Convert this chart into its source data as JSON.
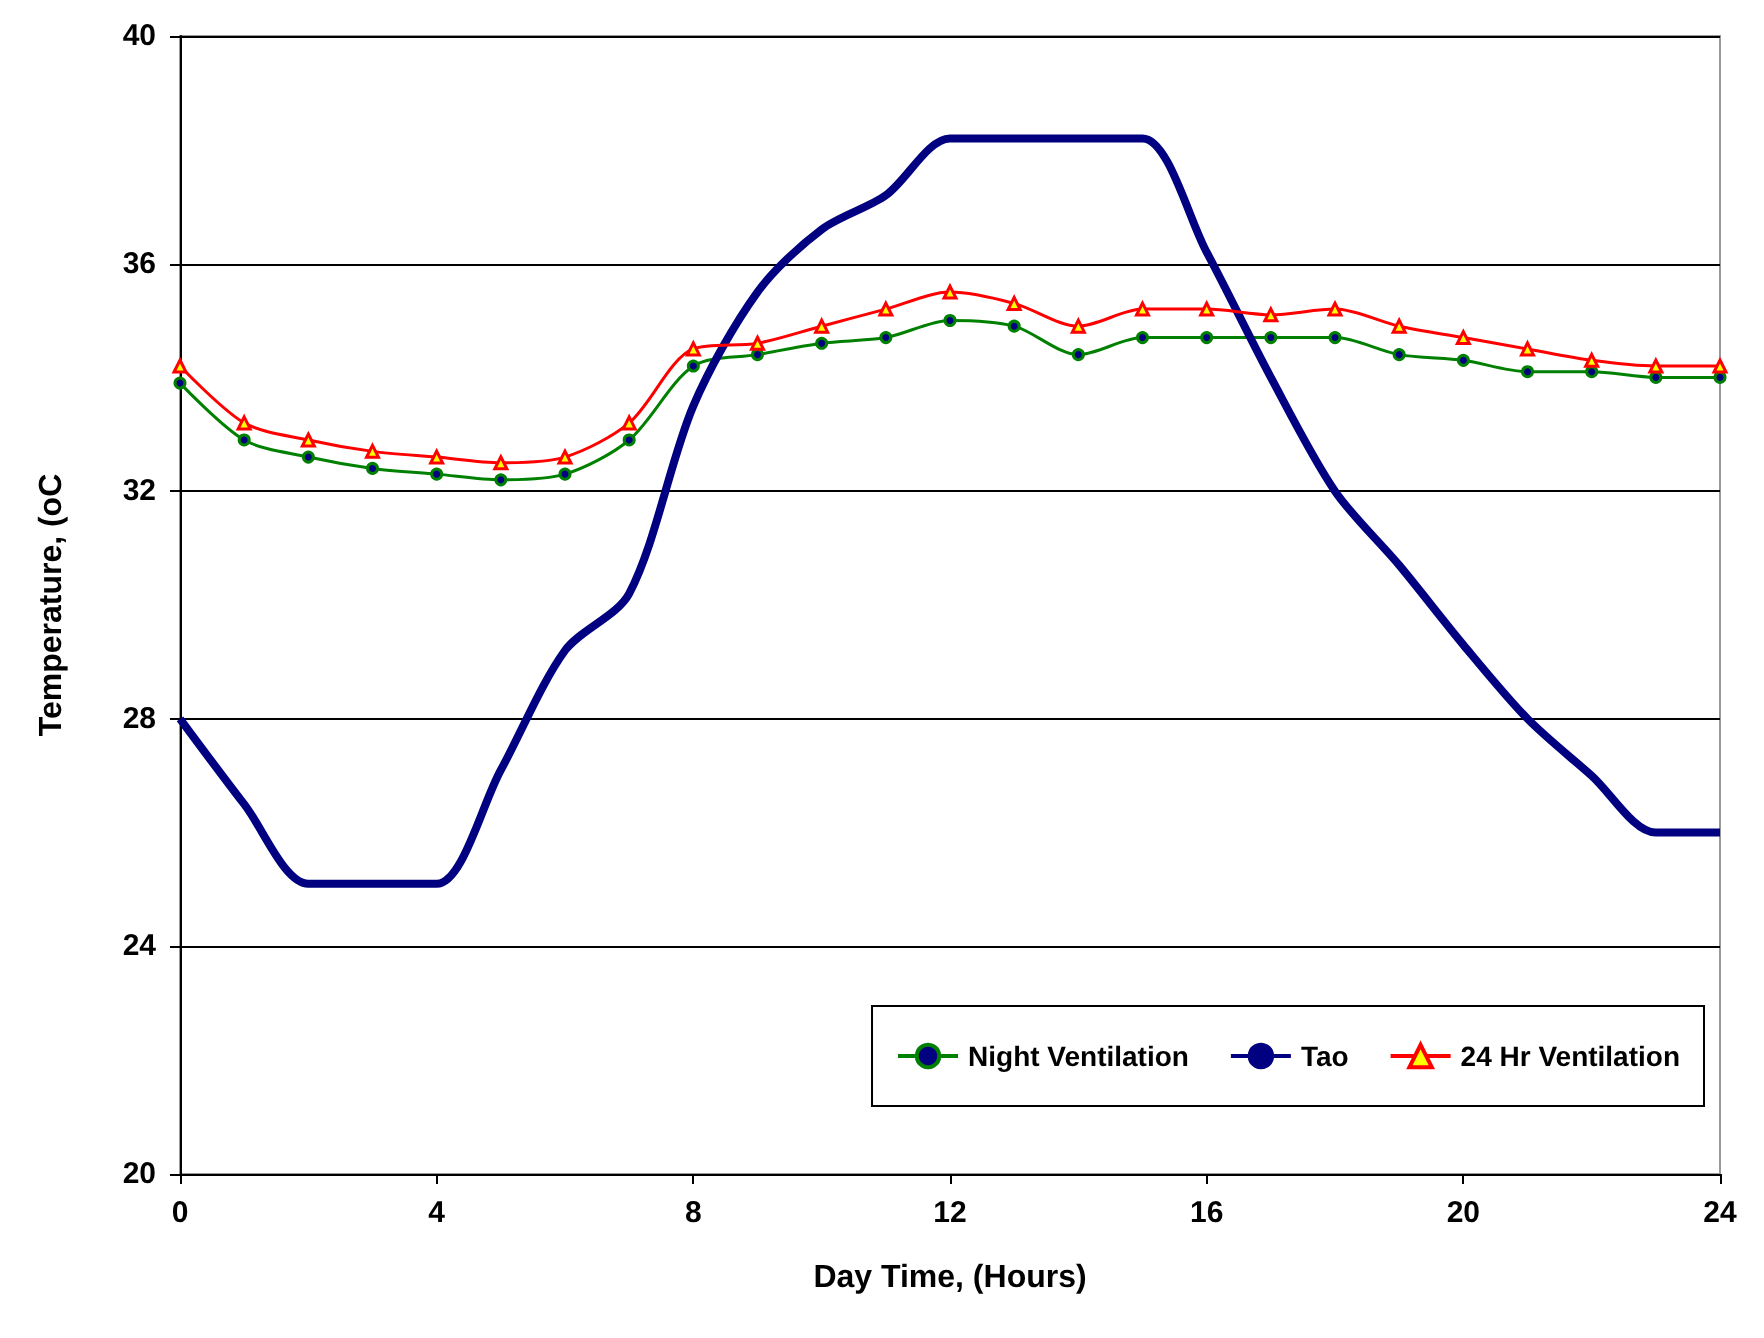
{
  "chart_data": {
    "type": "line",
    "xlabel": "Day Time, (Hours)",
    "ylabel": "Temperature, (oC",
    "x": [
      0,
      1,
      2,
      3,
      4,
      5,
      6,
      7,
      8,
      9,
      10,
      11,
      12,
      13,
      14,
      15,
      16,
      17,
      18,
      19,
      20,
      21,
      22,
      23,
      24
    ],
    "series": [
      {
        "name": "Night Ventilation",
        "color": "#008000",
        "marker": "circle",
        "values": [
          33.9,
          32.9,
          32.6,
          32.4,
          32.3,
          32.2,
          32.3,
          32.9,
          34.2,
          34.4,
          34.6,
          34.7,
          35.0,
          34.9,
          34.4,
          34.7,
          34.7,
          34.7,
          34.7,
          34.4,
          34.3,
          34.1,
          34.1,
          34.0,
          34.0
        ]
      },
      {
        "name": "Tao",
        "color": "#000080",
        "marker": "none",
        "values": [
          28.0,
          26.5,
          25.1,
          25.1,
          25.1,
          27.1,
          29.2,
          30.2,
          33.5,
          35.5,
          36.6,
          37.2,
          38.2,
          38.2,
          38.2,
          38.2,
          36.2,
          34.0,
          32.0,
          30.7,
          29.3,
          28.0,
          27.0,
          26.0,
          26.0
        ]
      },
      {
        "name": "24 Hr Ventilation",
        "color": "#ff0000",
        "marker": "triangle",
        "values": [
          34.2,
          33.2,
          32.9,
          32.7,
          32.6,
          32.5,
          32.6,
          33.2,
          34.5,
          34.6,
          34.9,
          35.2,
          35.5,
          35.3,
          34.9,
          35.2,
          35.2,
          35.1,
          35.2,
          34.9,
          34.7,
          34.5,
          34.3,
          34.2,
          34.2
        ]
      }
    ],
    "xlim": [
      0,
      24
    ],
    "xticks": [
      0,
      4,
      8,
      12,
      16,
      20,
      24
    ],
    "ylim": [
      20,
      40
    ],
    "yticks": [
      20,
      24,
      28,
      32,
      36,
      40
    ],
    "grid": "y",
    "legend": "bottom right"
  }
}
